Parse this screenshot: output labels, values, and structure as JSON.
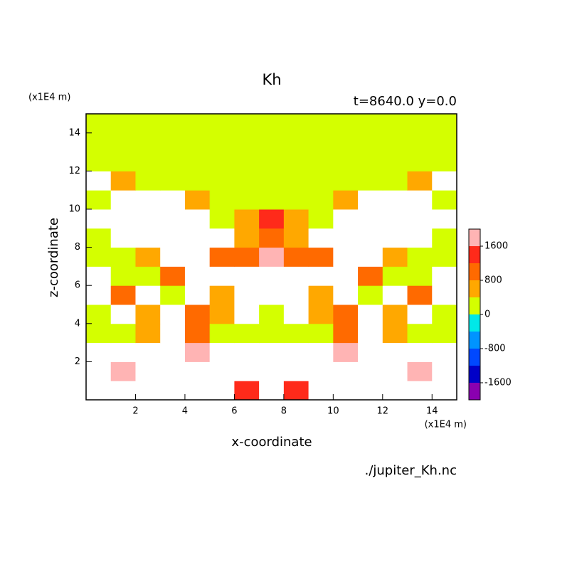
{
  "chart_data": {
    "type": "contour",
    "title": "Kh",
    "subtitle": "t=8640.0 y=0.0",
    "x_label": "x-coordinate",
    "y_label": "z-coordinate",
    "x_unit": "(x1E4 m)",
    "y_unit": "(x1E4 m)",
    "source": "./jupiter_Kh.nc",
    "xlim": [
      0,
      15
    ],
    "ylim": [
      0,
      15
    ],
    "xticks": [
      2,
      4,
      6,
      8,
      10,
      12,
      14
    ],
    "yticks": [
      2,
      4,
      6,
      8,
      10,
      12,
      14
    ],
    "x": [
      0.5,
      1.5,
      2.5,
      3.5,
      4.5,
      5.5,
      6.5,
      7.5,
      8.5,
      9.5,
      10.5,
      11.5,
      12.5,
      13.5,
      14.5
    ],
    "z": [
      0.5,
      1.5,
      2.5,
      3.5,
      4.5,
      5.5,
      6.5,
      7.5,
      8.5,
      9.5,
      10.5,
      11.5,
      12.5,
      13.5,
      14.5
    ],
    "values": [
      [
        3000,
        3000,
        3000,
        3000,
        3000,
        3000,
        1500,
        3000,
        1500,
        3000,
        3000,
        3000,
        3000,
        3000,
        3000
      ],
      [
        3000,
        1800,
        3000,
        3000,
        3000,
        3000,
        3000,
        3000,
        3000,
        3000,
        3000,
        3000,
        3000,
        1800,
        3000
      ],
      [
        3000,
        3000,
        3000,
        3000,
        1800,
        3000,
        3000,
        3000,
        3000,
        3000,
        1800,
        3000,
        3000,
        3000,
        3000
      ],
      [
        200,
        200,
        600,
        3000,
        800,
        200,
        200,
        200,
        200,
        200,
        800,
        3000,
        600,
        200,
        200
      ],
      [
        200,
        3000,
        600,
        3000,
        1000,
        600,
        3000,
        200,
        3000,
        600,
        1000,
        3000,
        600,
        3000,
        200
      ],
      [
        3000,
        1000,
        3000,
        200,
        3000,
        700,
        3000,
        3000,
        3000,
        700,
        3000,
        200,
        3000,
        1000,
        3000
      ],
      [
        3000,
        200,
        200,
        800,
        3000,
        3000,
        3000,
        3000,
        3000,
        3000,
        3000,
        800,
        200,
        200,
        3000
      ],
      [
        200,
        200,
        600,
        3000,
        3000,
        900,
        800,
        1600,
        800,
        900,
        3000,
        3000,
        600,
        200,
        200
      ],
      [
        200,
        3000,
        3000,
        3000,
        3000,
        3000,
        500,
        1000,
        500,
        3000,
        3000,
        3000,
        3000,
        3000,
        200
      ],
      [
        3000,
        3000,
        3000,
        3000,
        3000,
        200,
        600,
        1400,
        600,
        200,
        3000,
        3000,
        3000,
        3000,
        3000
      ],
      [
        200,
        3000,
        3000,
        3000,
        600,
        200,
        200,
        200,
        200,
        200,
        600,
        3000,
        3000,
        3000,
        200
      ],
      [
        2500,
        600,
        200,
        200,
        200,
        200,
        200,
        200,
        200,
        200,
        200,
        200,
        200,
        600,
        2500
      ],
      [
        300,
        300,
        300,
        300,
        300,
        300,
        300,
        300,
        300,
        300,
        300,
        300,
        300,
        300,
        300
      ],
      [
        200,
        200,
        200,
        200,
        200,
        200,
        200,
        200,
        200,
        200,
        200,
        200,
        200,
        200,
        200
      ],
      [
        200,
        200,
        200,
        200,
        200,
        200,
        200,
        200,
        200,
        200,
        200,
        200,
        200,
        200,
        200
      ]
    ],
    "levels": [
      -2000,
      -1600,
      -1200,
      -800,
      -400,
      0,
      400,
      800,
      1200,
      1600,
      2000
    ],
    "colors": [
      "#8a00b0",
      "#0000c8",
      "#0048ff",
      "#0094ff",
      "#00e8e8",
      "#d4ff00",
      "#ffa800",
      "#ff6a00",
      "#ff2a1a",
      "#ffb4b4"
    ],
    "colorbar_ticks": [
      -1600,
      -800,
      0,
      800,
      1600
    ]
  }
}
